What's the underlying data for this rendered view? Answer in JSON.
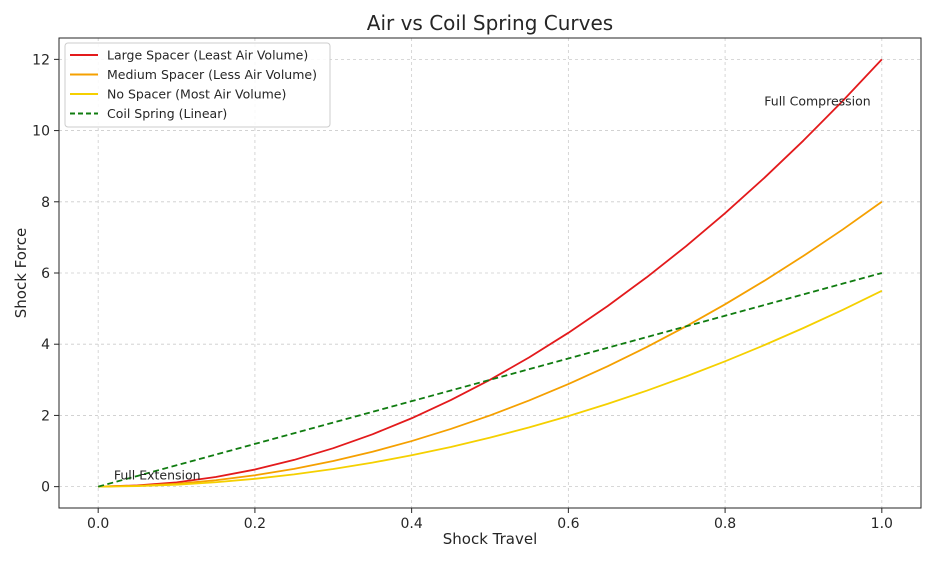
{
  "chart_data": {
    "type": "line",
    "title": "Air vs Coil Spring Curves",
    "xlabel": "Shock Travel",
    "ylabel": "Shock Force",
    "xlim": [
      -0.05,
      1.05
    ],
    "ylim": [
      -0.6,
      12.6
    ],
    "xticks": [
      0.0,
      0.2,
      0.4,
      0.6,
      0.8,
      1.0
    ],
    "xtick_labels": [
      "0.0",
      "0.2",
      "0.4",
      "0.6",
      "0.8",
      "1.0"
    ],
    "yticks": [
      0,
      2,
      4,
      6,
      8,
      10,
      12
    ],
    "ytick_labels": [
      "0",
      "2",
      "4",
      "6",
      "8",
      "10",
      "12"
    ],
    "grid": true,
    "legend_position": "top-left",
    "x": [
      0.0,
      0.05,
      0.1,
      0.15,
      0.2,
      0.25,
      0.3,
      0.35,
      0.4,
      0.45,
      0.5,
      0.55,
      0.6,
      0.65,
      0.7,
      0.75,
      0.8,
      0.85,
      0.9,
      0.95,
      1.0
    ],
    "series": [
      {
        "name": "Large Spacer (Least Air Volume)",
        "color": "#e31a1c",
        "style": "solid",
        "values": [
          0.0,
          0.035,
          0.12,
          0.27,
          0.48,
          0.75,
          1.08,
          1.47,
          1.92,
          2.43,
          3.0,
          3.63,
          4.32,
          5.07,
          5.88,
          6.75,
          7.68,
          8.67,
          9.72,
          10.83,
          12.0
        ]
      },
      {
        "name": "Medium Spacer (Less Air Volume)",
        "color": "#f5a000",
        "style": "solid",
        "values": [
          0.0,
          0.025,
          0.08,
          0.18,
          0.32,
          0.5,
          0.72,
          0.98,
          1.28,
          1.62,
          2.0,
          2.42,
          2.88,
          3.38,
          3.92,
          4.5,
          5.12,
          5.78,
          6.48,
          7.22,
          8.0
        ]
      },
      {
        "name": "No Spacer (Most Air Volume)",
        "color": "#f5d000",
        "style": "solid",
        "values": [
          0.0,
          0.014,
          0.055,
          0.124,
          0.22,
          0.344,
          0.495,
          0.674,
          0.88,
          1.114,
          1.375,
          1.664,
          1.98,
          2.324,
          2.695,
          3.094,
          3.52,
          3.974,
          4.455,
          4.964,
          5.5
        ]
      },
      {
        "name": "Coil Spring (Linear)",
        "color": "#107c10",
        "style": "dashed",
        "values": [
          0.0,
          0.3,
          0.6,
          0.9,
          1.2,
          1.5,
          1.8,
          2.1,
          2.4,
          2.7,
          3.0,
          3.3,
          3.6,
          3.9,
          4.2,
          4.5,
          4.8,
          5.1,
          5.4,
          5.7,
          6.0
        ]
      }
    ],
    "annotations": [
      {
        "text": "Full Extension",
        "x": 0.02,
        "y": 0.2
      },
      {
        "text": "Full Compression",
        "x": 0.85,
        "y": 10.7
      }
    ]
  }
}
